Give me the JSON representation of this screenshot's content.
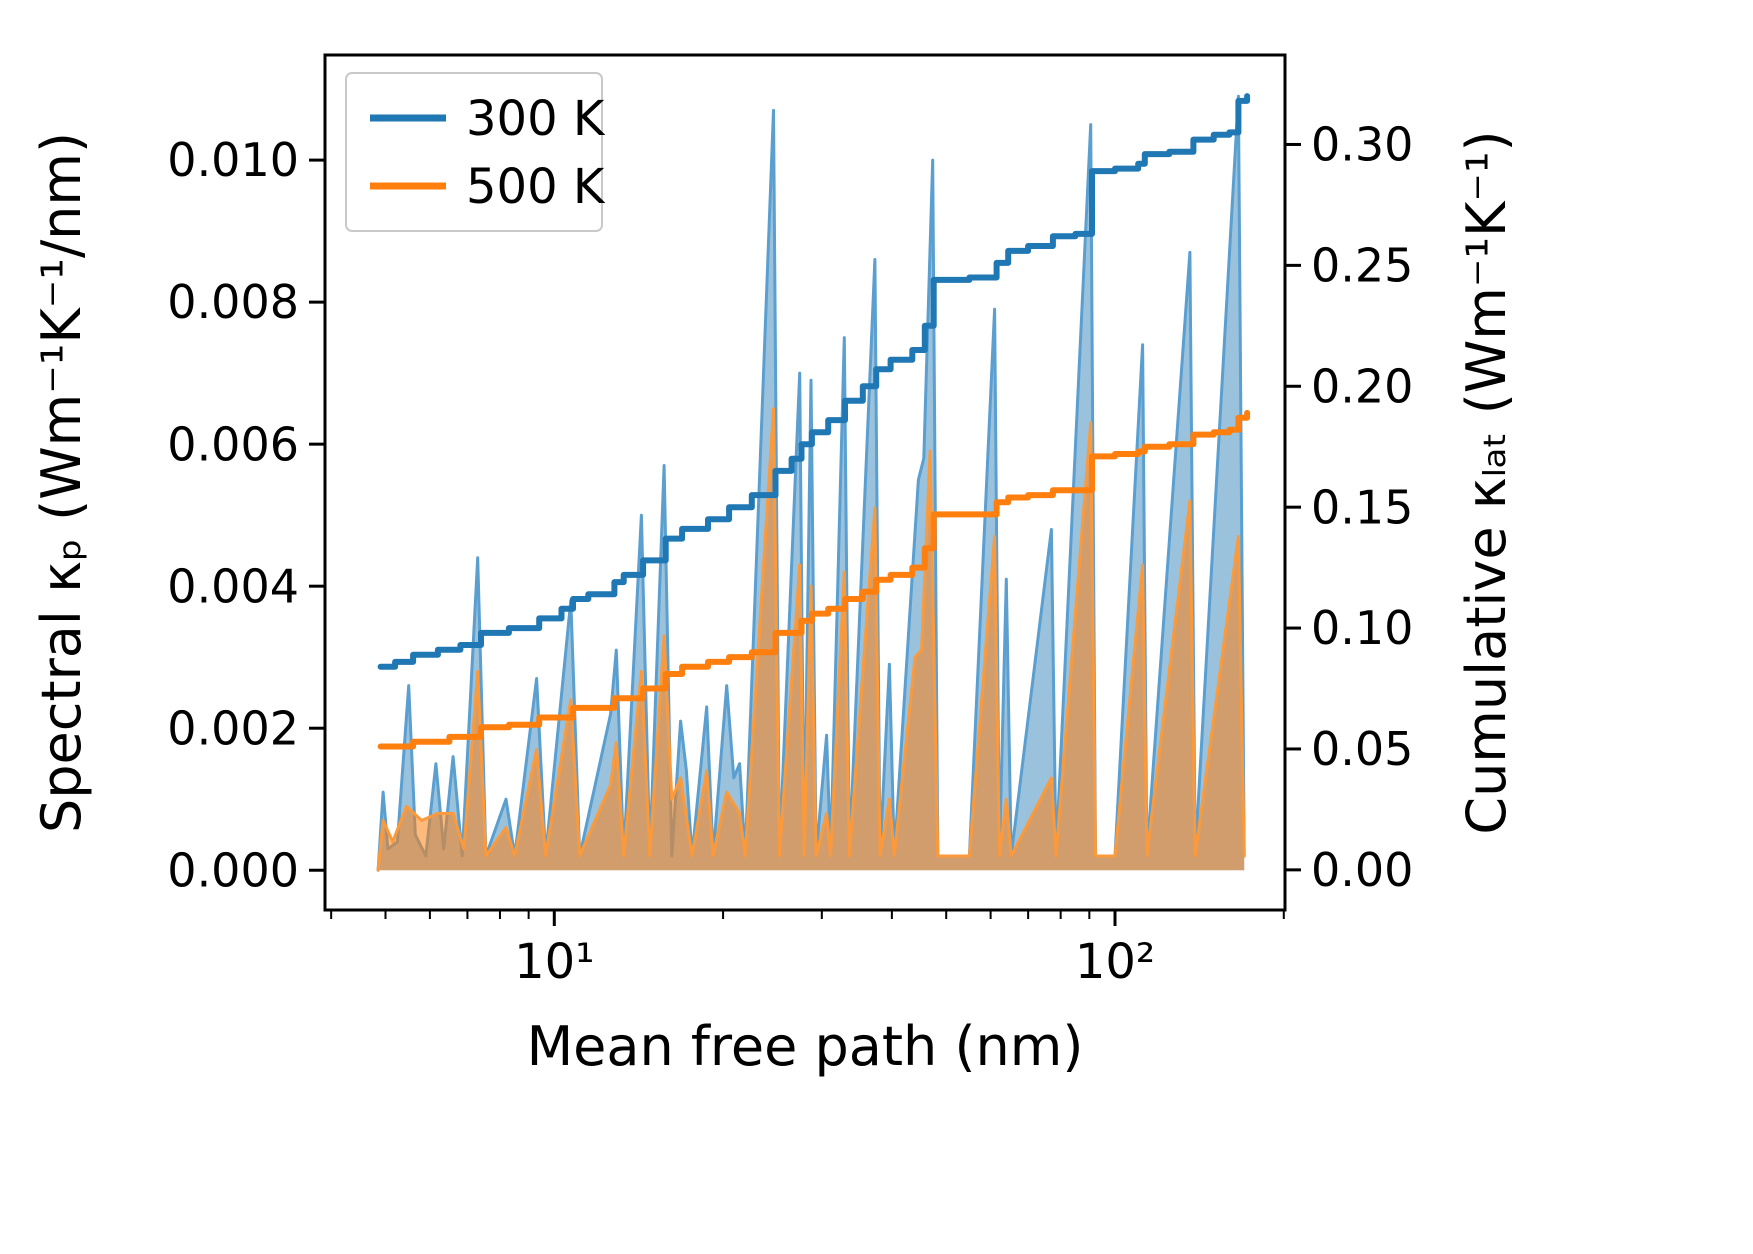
{
  "figure": {
    "background": "#ffffff",
    "description": "Spectral and cumulative lattice thermal conductivity vs phonon mean free path at two temperatures"
  },
  "chart_data": {
    "type": "area",
    "title": "",
    "xlabel": "Mean free path (nm)",
    "ylabel_left": "Spectral κₚ (Wm⁻¹K⁻¹/nm)",
    "ylabel_right": "Cumulative κₗₐₜ (Wm⁻¹K⁻¹)",
    "x_scale": "log",
    "grid": false,
    "x_range": [
      3.9,
      201
    ],
    "x_major_ticks": [
      10,
      100
    ],
    "x_major_tick_labels": [
      "10¹",
      "10²"
    ],
    "y_left_range": [
      -0.00056,
      0.01148
    ],
    "y_left_ticks": [
      0,
      0.002,
      0.004,
      0.006,
      0.008,
      0.01
    ],
    "y_left_tick_labels": [
      "0.000",
      "0.002",
      "0.004",
      "0.006",
      "0.008",
      "0.010"
    ],
    "y_right_range": [
      -0.0166,
      0.337
    ],
    "y_right_ticks": [
      0,
      0.05,
      0.1,
      0.15,
      0.2,
      0.25,
      0.3
    ],
    "y_right_tick_labels": [
      "0.00",
      "0.05",
      "0.10",
      "0.15",
      "0.20",
      "0.25",
      "0.30"
    ],
    "legend": {
      "position": "upper left",
      "entries": [
        {
          "label": "300 K",
          "color": "#1f77b4"
        },
        {
          "label": "500 K",
          "color": "#ff7f0e"
        }
      ]
    },
    "series": [
      {
        "name": "300 K spectral",
        "axis": "left",
        "style": "area",
        "color": "#1f77b4",
        "line_color": "#5a9fd0",
        "fill_opacity": 0.45,
        "line_width": 3,
        "points": [
          [
            4.85,
            0
          ],
          [
            4.95,
            0.0011
          ],
          [
            5.05,
            0.0003
          ],
          [
            5.25,
            0.0004
          ],
          [
            5.5,
            0.0026
          ],
          [
            5.65,
            0.0005
          ],
          [
            5.9,
            0.0002
          ],
          [
            6.15,
            0.0015
          ],
          [
            6.35,
            0.0003
          ],
          [
            6.6,
            0.0016
          ],
          [
            6.85,
            0.0002
          ],
          [
            7.3,
            0.0044
          ],
          [
            7.55,
            0.0002
          ],
          [
            8.2,
            0.001
          ],
          [
            8.5,
            0.0002
          ],
          [
            9.3,
            0.0027
          ],
          [
            9.65,
            0.0002
          ],
          [
            10.7,
            0.0038
          ],
          [
            11.1,
            0.0002
          ],
          [
            12.6,
            0.0022
          ],
          [
            12.9,
            0.0031
          ],
          [
            13.3,
            0.0002
          ],
          [
            14.3,
            0.005
          ],
          [
            14.8,
            0.0002
          ],
          [
            15.7,
            0.0057
          ],
          [
            16.2,
            0.0002
          ],
          [
            16.8,
            0.0021
          ],
          [
            17.2,
            0.0014
          ],
          [
            17.6,
            0.0002
          ],
          [
            18.7,
            0.0023
          ],
          [
            19.2,
            0.0002
          ],
          [
            20.3,
            0.0026
          ],
          [
            20.9,
            0.0013
          ],
          [
            21.4,
            0.0015
          ],
          [
            21.9,
            0.0002
          ],
          [
            24.6,
            0.0107
          ],
          [
            25.2,
            0.0002
          ],
          [
            27.4,
            0.007
          ],
          [
            27.9,
            0.0002
          ],
          [
            28.7,
            0.0069
          ],
          [
            29.3,
            0.0002
          ],
          [
            30.6,
            0.0019
          ],
          [
            31.1,
            0.0002
          ],
          [
            32.9,
            0.0075
          ],
          [
            33.6,
            0.0002
          ],
          [
            37.3,
            0.0086
          ],
          [
            38.1,
            0.0002
          ],
          [
            39.6,
            0.0029
          ],
          [
            40.4,
            0.0002
          ],
          [
            44.6,
            0.0055
          ],
          [
            45.6,
            0.0058
          ],
          [
            47.3,
            0.01
          ],
          [
            48.3,
            0.0002
          ],
          [
            55,
            0.0002
          ],
          [
            61,
            0.0079
          ],
          [
            62.2,
            0.0002
          ],
          [
            64,
            0.0041
          ],
          [
            65.3,
            0.0002
          ],
          [
            77,
            0.0048
          ],
          [
            78.5,
            0.0002
          ],
          [
            90.5,
            0.0105
          ],
          [
            92.3,
            0.0002
          ],
          [
            100,
            0.0002
          ],
          [
            112,
            0.0074
          ],
          [
            114,
            0.0002
          ],
          [
            136,
            0.0087
          ],
          [
            139,
            0.0002
          ],
          [
            166,
            0.0109
          ],
          [
            170,
            0.0002
          ]
        ]
      },
      {
        "name": "500 K spectral",
        "axis": "left",
        "style": "area",
        "color": "#ff7f0e",
        "line_color": "#fb9a3c",
        "fill_opacity": 0.55,
        "line_width": 3,
        "points": [
          [
            4.85,
            0
          ],
          [
            4.95,
            0.0007
          ],
          [
            5.15,
            0.0004
          ],
          [
            5.45,
            0.0009
          ],
          [
            5.8,
            0.0007
          ],
          [
            6.2,
            0.0008
          ],
          [
            6.6,
            0.0008
          ],
          [
            6.9,
            0.0003
          ],
          [
            7.3,
            0.0028
          ],
          [
            7.55,
            0.0002
          ],
          [
            8.2,
            0.0006
          ],
          [
            8.5,
            0.0002
          ],
          [
            9.3,
            0.0017
          ],
          [
            9.65,
            0.0002
          ],
          [
            10.7,
            0.0024
          ],
          [
            11.1,
            0.0002
          ],
          [
            12.6,
            0.0012
          ],
          [
            12.9,
            0.0018
          ],
          [
            13.3,
            0.0002
          ],
          [
            14.3,
            0.0028
          ],
          [
            14.8,
            0.0002
          ],
          [
            15.7,
            0.0033
          ],
          [
            16.2,
            0.001
          ],
          [
            16.8,
            0.0013
          ],
          [
            17.6,
            0.0002
          ],
          [
            18.7,
            0.0014
          ],
          [
            19.2,
            0.0002
          ],
          [
            20.3,
            0.0011
          ],
          [
            21.4,
            0.0008
          ],
          [
            21.9,
            0.0002
          ],
          [
            24.6,
            0.0065
          ],
          [
            25.2,
            0.0002
          ],
          [
            27.4,
            0.0043
          ],
          [
            27.9,
            0.0002
          ],
          [
            28.7,
            0.004
          ],
          [
            29.3,
            0.0002
          ],
          [
            30.6,
            0.0008
          ],
          [
            31.1,
            0.0002
          ],
          [
            32.9,
            0.0042
          ],
          [
            33.6,
            0.0002
          ],
          [
            37.3,
            0.0051
          ],
          [
            38.1,
            0.0002
          ],
          [
            39.6,
            0.001
          ],
          [
            40.4,
            0.0002
          ],
          [
            44,
            0.003
          ],
          [
            45.2,
            0.0031
          ],
          [
            46.8,
            0.0059
          ],
          [
            48.3,
            0.0002
          ],
          [
            55,
            0.0002
          ],
          [
            61,
            0.0047
          ],
          [
            62.2,
            0.0002
          ],
          [
            64,
            0.001
          ],
          [
            65.3,
            0.0002
          ],
          [
            77,
            0.0013
          ],
          [
            78.5,
            0.0002
          ],
          [
            90.5,
            0.0063
          ],
          [
            92.3,
            0.0002
          ],
          [
            100,
            0.0002
          ],
          [
            112,
            0.0043
          ],
          [
            114,
            0.0002
          ],
          [
            136,
            0.0052
          ],
          [
            139,
            0.0002
          ],
          [
            166,
            0.0047
          ],
          [
            170,
            0.0002
          ]
        ]
      },
      {
        "name": "300 K cumulative",
        "axis": "right",
        "style": "step",
        "color": "#1f77b4",
        "line_width": 6,
        "points": [
          [
            4.9,
            0.084
          ],
          [
            5.2,
            0.086
          ],
          [
            5.6,
            0.089
          ],
          [
            6.2,
            0.091
          ],
          [
            6.8,
            0.093
          ],
          [
            7.4,
            0.098
          ],
          [
            8.3,
            0.1
          ],
          [
            9.4,
            0.104
          ],
          [
            10.3,
            0.108
          ],
          [
            10.8,
            0.112
          ],
          [
            11.5,
            0.114
          ],
          [
            12.8,
            0.119
          ],
          [
            13.3,
            0.122
          ],
          [
            14.4,
            0.128
          ],
          [
            15.8,
            0.137
          ],
          [
            16.9,
            0.141
          ],
          [
            18.8,
            0.145
          ],
          [
            20.5,
            0.15
          ],
          [
            22.5,
            0.155
          ],
          [
            24.8,
            0.165
          ],
          [
            26.5,
            0.17
          ],
          [
            27.6,
            0.176
          ],
          [
            28.8,
            0.181
          ],
          [
            30.8,
            0.186
          ],
          [
            33,
            0.194
          ],
          [
            35.5,
            0.2
          ],
          [
            37.5,
            0.207
          ],
          [
            39.8,
            0.211
          ],
          [
            43.5,
            0.215
          ],
          [
            45.8,
            0.225
          ],
          [
            47.5,
            0.244
          ],
          [
            55,
            0.245
          ],
          [
            61.5,
            0.251
          ],
          [
            64.5,
            0.256
          ],
          [
            70,
            0.258
          ],
          [
            77.5,
            0.262
          ],
          [
            85,
            0.263
          ],
          [
            91,
            0.289
          ],
          [
            100,
            0.29
          ],
          [
            110,
            0.292
          ],
          [
            113,
            0.296
          ],
          [
            125,
            0.297
          ],
          [
            138,
            0.302
          ],
          [
            150,
            0.304
          ],
          [
            160,
            0.305
          ],
          [
            166,
            0.318
          ],
          [
            172,
            0.32
          ]
        ]
      },
      {
        "name": "500 K cumulative",
        "axis": "right",
        "style": "step",
        "color": "#ff7f0e",
        "line_width": 6,
        "points": [
          [
            4.9,
            0.051
          ],
          [
            5.6,
            0.053
          ],
          [
            6.5,
            0.055
          ],
          [
            7.4,
            0.059
          ],
          [
            8.3,
            0.06
          ],
          [
            9.4,
            0.063
          ],
          [
            10.8,
            0.067
          ],
          [
            12.8,
            0.071
          ],
          [
            14.4,
            0.075
          ],
          [
            15.8,
            0.081
          ],
          [
            16.9,
            0.084
          ],
          [
            18.8,
            0.086
          ],
          [
            20.5,
            0.088
          ],
          [
            22.5,
            0.09
          ],
          [
            24.8,
            0.098
          ],
          [
            27.6,
            0.103
          ],
          [
            28.8,
            0.106
          ],
          [
            30.8,
            0.108
          ],
          [
            33,
            0.112
          ],
          [
            35.5,
            0.115
          ],
          [
            37.5,
            0.12
          ],
          [
            39.8,
            0.122
          ],
          [
            43.5,
            0.125
          ],
          [
            45.8,
            0.133
          ],
          [
            47.5,
            0.147
          ],
          [
            55,
            0.147
          ],
          [
            61.5,
            0.152
          ],
          [
            64.5,
            0.154
          ],
          [
            70,
            0.155
          ],
          [
            77.5,
            0.157
          ],
          [
            85,
            0.157
          ],
          [
            91,
            0.171
          ],
          [
            100,
            0.172
          ],
          [
            110,
            0.173
          ],
          [
            113,
            0.175
          ],
          [
            125,
            0.176
          ],
          [
            138,
            0.18
          ],
          [
            150,
            0.181
          ],
          [
            160,
            0.182
          ],
          [
            166,
            0.187
          ],
          [
            172,
            0.189
          ]
        ]
      }
    ]
  }
}
